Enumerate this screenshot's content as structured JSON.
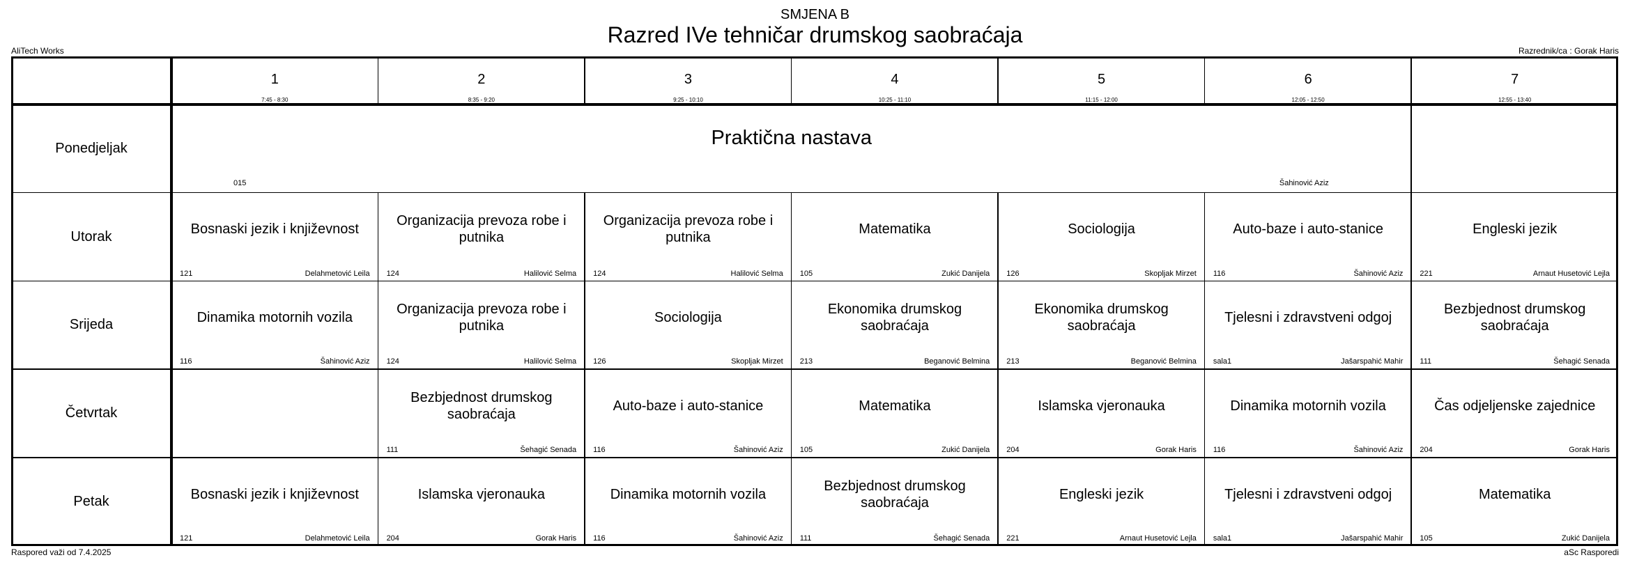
{
  "header": {
    "shift": "SMJENA B",
    "title": "Razred IVe tehničar drumskog saobraćaja",
    "school": "AliTech Works",
    "homeroom": "Razrednik/ca : Gorak Haris"
  },
  "footer": {
    "valid_from": "Raspored važi od 7.4.2025",
    "brand": "aSc Rasporedi"
  },
  "periods": [
    {
      "num": "1",
      "time": "7:45 - 8:30"
    },
    {
      "num": "2",
      "time": "8:35 - 9:20"
    },
    {
      "num": "3",
      "time": "9:25 - 10:10"
    },
    {
      "num": "4",
      "time": "10:25 - 11:10"
    },
    {
      "num": "5",
      "time": "11:15 - 12:00"
    },
    {
      "num": "6",
      "time": "12:05 - 12:50"
    },
    {
      "num": "7",
      "time": "12:55 - 13:40"
    }
  ],
  "days": [
    "Ponedjeljak",
    "Utorak",
    "Srijeda",
    "Četvrtak",
    "Petak"
  ],
  "lessons": [
    {
      "day": 0,
      "period": 0,
      "span": 6,
      "subject": "Praktična nastava",
      "room": "015",
      "teacher": "Šahinović Aziz",
      "big": true
    },
    {
      "day": 1,
      "period": 0,
      "subject": "Bosnaski jezik i književnost",
      "room": "121",
      "teacher": "Delahmetović Leila"
    },
    {
      "day": 1,
      "period": 1,
      "subject": "Organizacija prevoza robe i putnika",
      "room": "124",
      "teacher": "Halilović Selma"
    },
    {
      "day": 1,
      "period": 2,
      "subject": "Organizacija prevoza robe i putnika",
      "room": "124",
      "teacher": "Halilović Selma"
    },
    {
      "day": 1,
      "period": 3,
      "subject": "Matematika",
      "room": "105",
      "teacher": "Zukić Danijela"
    },
    {
      "day": 1,
      "period": 4,
      "subject": "Sociologija",
      "room": "126",
      "teacher": "Skopljak Mirzet"
    },
    {
      "day": 1,
      "period": 5,
      "subject": "Auto-baze i auto-stanice",
      "room": "116",
      "teacher": "Šahinović Aziz"
    },
    {
      "day": 1,
      "period": 6,
      "subject": "Engleski jezik",
      "room": "221",
      "teacher": "Arnaut Husetović Lejla"
    },
    {
      "day": 2,
      "period": 0,
      "subject": "Dinamika motornih vozila",
      "room": "116",
      "teacher": "Šahinović Aziz"
    },
    {
      "day": 2,
      "period": 1,
      "subject": "Organizacija prevoza robe i putnika",
      "room": "124",
      "teacher": "Halilović Selma"
    },
    {
      "day": 2,
      "period": 2,
      "subject": "Sociologija",
      "room": "126",
      "teacher": "Skopljak Mirzet"
    },
    {
      "day": 2,
      "period": 3,
      "subject": "Ekonomika drumskog saobraćaja",
      "room": "213",
      "teacher": "Beganović Belmina"
    },
    {
      "day": 2,
      "period": 4,
      "subject": "Ekonomika drumskog saobraćaja",
      "room": "213",
      "teacher": "Beganović Belmina"
    },
    {
      "day": 2,
      "period": 5,
      "subject": "Tjelesni i zdravstveni odgoj",
      "room": "sala1",
      "teacher": "Jašarspahić Mahir"
    },
    {
      "day": 2,
      "period": 6,
      "subject": "Bezbjednost drumskog saobraćaja",
      "room": "111",
      "teacher": "Šehagić Senada"
    },
    {
      "day": 3,
      "period": 1,
      "subject": "Bezbjednost drumskog saobraćaja",
      "room": "111",
      "teacher": "Šehagić Senada"
    },
    {
      "day": 3,
      "period": 2,
      "subject": "Auto-baze i auto-stanice",
      "room": "116",
      "teacher": "Šahinović Aziz"
    },
    {
      "day": 3,
      "period": 3,
      "subject": "Matematika",
      "room": "105",
      "teacher": "Zukić Danijela"
    },
    {
      "day": 3,
      "period": 4,
      "subject": "Islamska vjeronauka",
      "room": "204",
      "teacher": "Gorak Haris"
    },
    {
      "day": 3,
      "period": 5,
      "subject": "Dinamika motornih vozila",
      "room": "116",
      "teacher": "Šahinović Aziz"
    },
    {
      "day": 3,
      "period": 6,
      "subject": "Čas odjeljenske zajednice",
      "room": "204",
      "teacher": "Gorak Haris"
    },
    {
      "day": 4,
      "period": 0,
      "subject": "Bosnaski jezik i književnost",
      "room": "121",
      "teacher": "Delahmetović Leila"
    },
    {
      "day": 4,
      "period": 1,
      "subject": "Islamska vjeronauka",
      "room": "204",
      "teacher": "Gorak Haris"
    },
    {
      "day": 4,
      "period": 2,
      "subject": "Dinamika motornih vozila",
      "room": "116",
      "teacher": "Šahinović Aziz"
    },
    {
      "day": 4,
      "period": 3,
      "subject": "Bezbjednost drumskog saobraćaja",
      "room": "111",
      "teacher": "Šehagić Senada"
    },
    {
      "day": 4,
      "period": 4,
      "subject": "Engleski jezik",
      "room": "221",
      "teacher": "Arnaut Husetović Lejla"
    },
    {
      "day": 4,
      "period": 5,
      "subject": "Tjelesni i zdravstveni odgoj",
      "room": "sala1",
      "teacher": "Jašarspahić Mahir"
    },
    {
      "day": 4,
      "period": 6,
      "subject": "Matematika",
      "room": "105",
      "teacher": "Zukić Danijela"
    }
  ]
}
